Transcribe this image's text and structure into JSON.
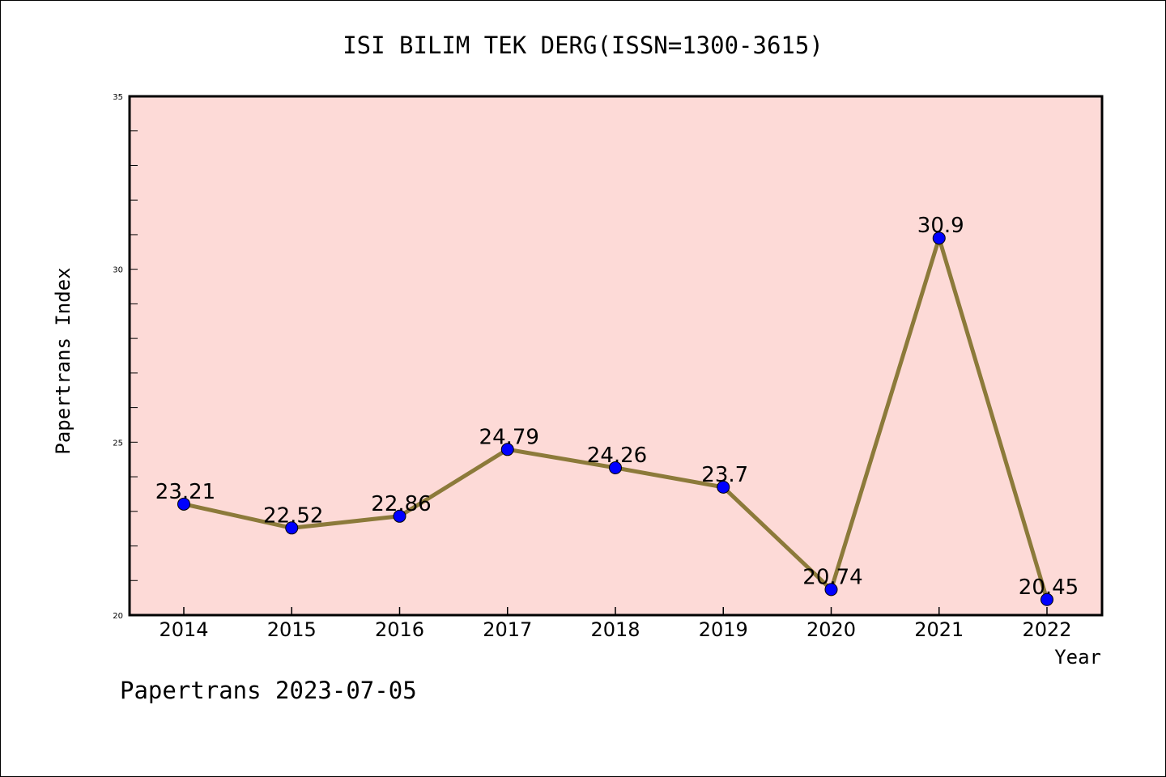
{
  "chart_data": {
    "type": "line",
    "title": "ISI BILIM TEK DERG(ISSN=1300-3615)",
    "xlabel": "Year",
    "ylabel": "Papertrans Index",
    "categories": [
      "2014",
      "2015",
      "2016",
      "2017",
      "2018",
      "2019",
      "2020",
      "2021",
      "2022"
    ],
    "series": [
      {
        "values": [
          23.21,
          22.52,
          22.86,
          24.79,
          24.26,
          23.7,
          20.74,
          30.9,
          20.45
        ],
        "labels": [
          "23.21",
          "22.52",
          "22.86",
          "24.79",
          "24.26",
          "23.7",
          "20.74",
          "30.9",
          "20.45"
        ]
      }
    ],
    "ylim": [
      20,
      35
    ],
    "yticks": [
      20,
      25,
      30,
      35
    ],
    "yminor_step": 1,
    "grid": false,
    "legend": "none",
    "colors": {
      "plot_background": "#fddad7",
      "line": "#8c7a3a",
      "marker": "#0000ff",
      "frame": "#000000"
    }
  },
  "footer": {
    "watermark": "Papertrans 2023-07-05"
  }
}
